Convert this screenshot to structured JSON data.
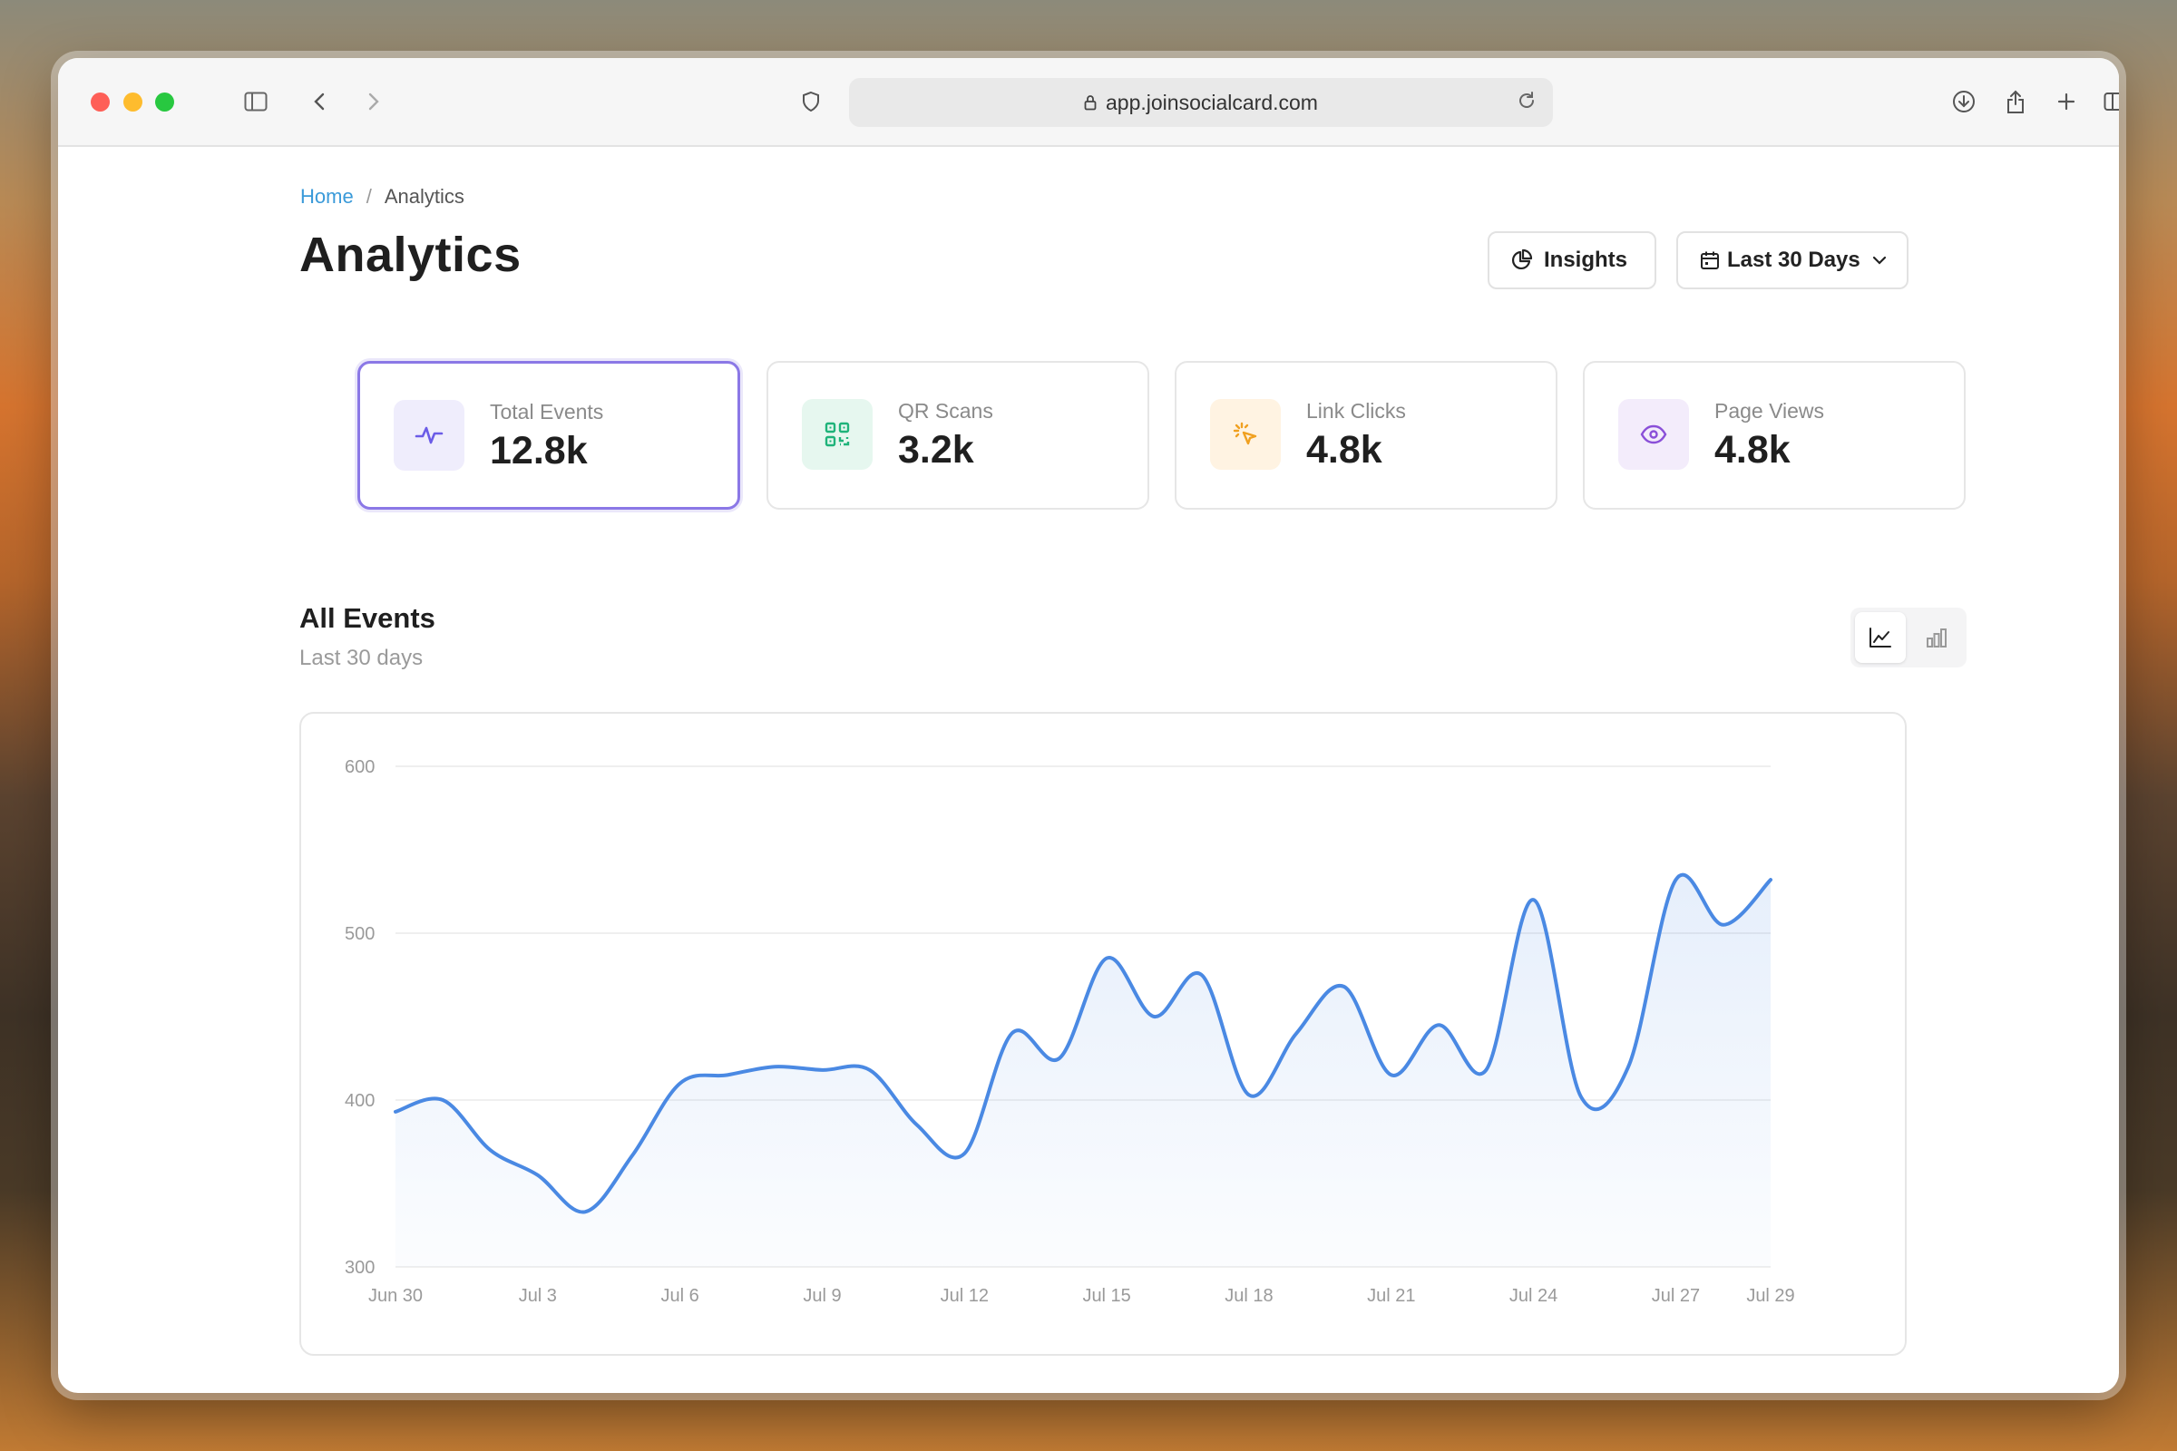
{
  "browser": {
    "url": "app.joinsocialcard.com"
  },
  "breadcrumb": {
    "home": "Home",
    "separator": "/",
    "current": "Analytics"
  },
  "page": {
    "title": "Analytics"
  },
  "actions": {
    "insights_label": "Insights",
    "range_label": "Last 30 Days"
  },
  "stats": [
    {
      "label": "Total Events",
      "value": "12.8k",
      "icon": "activity-icon",
      "color": "#6b5ce7",
      "bg": "#efedfc"
    },
    {
      "label": "QR Scans",
      "value": "3.2k",
      "icon": "qr-code-icon",
      "color": "#1fb37a",
      "bg": "#e6f7ef"
    },
    {
      "label": "Link Clicks",
      "value": "4.8k",
      "icon": "cursor-click-icon",
      "color": "#f0a020",
      "bg": "#fff3e2"
    },
    {
      "label": "Page Views",
      "value": "4.8k",
      "icon": "eye-icon",
      "color": "#8a4fd8",
      "bg": "#f3ecfb"
    }
  ],
  "section": {
    "title": "All Events",
    "subtitle": "Last 30 days"
  },
  "chart_data": {
    "type": "area",
    "line_color": "#4a89e3",
    "ylim": [
      300,
      600
    ],
    "yticks": [
      300,
      400,
      500,
      600
    ],
    "xtick_labels": [
      "Jun 30",
      "Jul 3",
      "Jul 6",
      "Jul 9",
      "Jul 12",
      "Jul 15",
      "Jul 18",
      "Jul 21",
      "Jul 24",
      "Jul 27",
      "Jul 29"
    ],
    "xtick_index": [
      0,
      3,
      6,
      9,
      12,
      15,
      18,
      21,
      24,
      27,
      29
    ],
    "x": [
      "Jun 30",
      "Jul 1",
      "Jul 2",
      "Jul 3",
      "Jul 4",
      "Jul 5",
      "Jul 6",
      "Jul 7",
      "Jul 8",
      "Jul 9",
      "Jul 10",
      "Jul 11",
      "Jul 12",
      "Jul 13",
      "Jul 14",
      "Jul 15",
      "Jul 16",
      "Jul 17",
      "Jul 18",
      "Jul 19",
      "Jul 20",
      "Jul 21",
      "Jul 22",
      "Jul 23",
      "Jul 24",
      "Jul 25",
      "Jul 26",
      "Jul 27",
      "Jul 28",
      "Jul 29"
    ],
    "series": [
      {
        "values": [
          393,
          400,
          370,
          355,
          333,
          367,
          410,
          415,
          420,
          418,
          418,
          385,
          368,
          440,
          425,
          485,
          450,
          475,
          403,
          440,
          468,
          415,
          445,
          418,
          520,
          402,
          420,
          532,
          505,
          532
        ]
      }
    ],
    "grid": true
  }
}
